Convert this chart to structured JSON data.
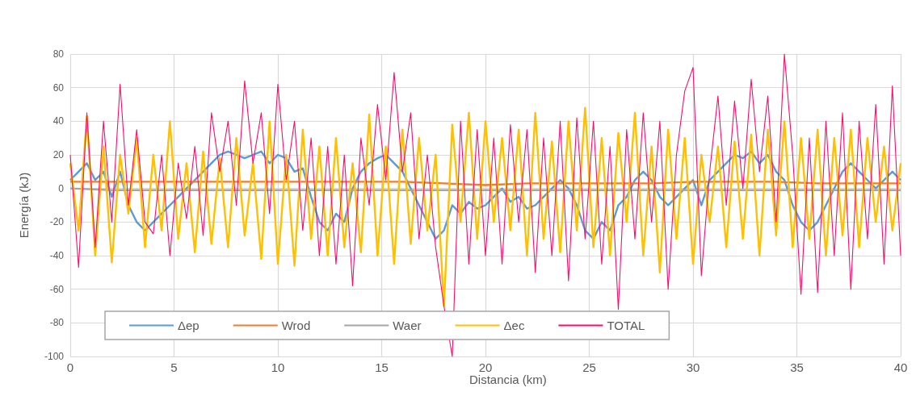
{
  "chart_data": {
    "type": "line",
    "xlabel": "Distancia (km)",
    "ylabel": "Energía (kJ)",
    "xlim": [
      0,
      40
    ],
    "xticks": [
      0,
      5,
      10,
      15,
      20,
      25,
      30,
      35,
      40
    ],
    "ylim": [
      -100,
      80
    ],
    "yticks": [
      -100,
      -80,
      -60,
      -40,
      -20,
      0,
      20,
      40,
      60,
      80
    ],
    "grid": true,
    "legend": "bottom left",
    "line_style": "solid",
    "x": [
      0,
      0.4,
      0.8,
      1.2,
      1.6,
      2,
      2.4,
      2.8,
      3.2,
      3.6,
      4,
      4.4,
      4.8,
      5.2,
      5.6,
      6,
      6.4,
      6.8,
      7.2,
      7.6,
      8,
      8.4,
      8.8,
      9.2,
      9.6,
      10,
      10.4,
      10.8,
      11.2,
      11.6,
      12,
      12.4,
      12.8,
      13.2,
      13.6,
      14,
      14.4,
      14.8,
      15.2,
      15.6,
      16,
      16.4,
      16.8,
      17.2,
      17.6,
      18,
      18.4,
      18.8,
      19.2,
      19.6,
      20,
      20.4,
      20.8,
      21.2,
      21.6,
      22,
      22.4,
      22.8,
      23.2,
      23.6,
      24,
      24.4,
      24.8,
      25.2,
      25.6,
      26,
      26.4,
      26.8,
      27.2,
      27.6,
      28,
      28.4,
      28.8,
      29.2,
      29.6,
      30,
      30.4,
      30.8,
      31.2,
      31.6,
      32,
      32.4,
      32.8,
      33.2,
      33.6,
      34,
      34.4,
      34.8,
      35.2,
      35.6,
      36,
      36.4,
      36.8,
      37.2,
      37.6,
      38,
      38.4,
      38.8,
      39.2,
      39.6,
      40
    ],
    "series": [
      {
        "name": "Δep",
        "color": "#5b9bd5",
        "values": [
          5,
          10,
          15,
          5,
          10,
          -5,
          10,
          -10,
          -20,
          -25,
          -20,
          -15,
          -10,
          -5,
          0,
          5,
          10,
          15,
          20,
          22,
          20,
          18,
          20,
          22,
          15,
          20,
          18,
          10,
          12,
          -5,
          -20,
          -25,
          -15,
          -20,
          0,
          10,
          15,
          18,
          20,
          15,
          10,
          0,
          -10,
          -20,
          -30,
          -25,
          -10,
          -15,
          -8,
          -12,
          -10,
          -5,
          0,
          -8,
          -5,
          -12,
          -10,
          -5,
          0,
          5,
          0,
          -10,
          -25,
          -30,
          -20,
          -25,
          -10,
          -5,
          5,
          10,
          5,
          -5,
          -10,
          -5,
          0,
          5,
          -10,
          5,
          10,
          15,
          20,
          18,
          22,
          15,
          20,
          10,
          5,
          -10,
          -20,
          -25,
          -20,
          -10,
          0,
          10,
          15,
          10,
          5,
          0,
          5,
          10,
          5
        ]
      },
      {
        "name": "Wrod",
        "color": "#ed7d31",
        "x": [
          0,
          2,
          4,
          6,
          8,
          10,
          12,
          14,
          16,
          18,
          20,
          22,
          24,
          26,
          28,
          30,
          32,
          34,
          36,
          38,
          40
        ],
        "values": [
          4,
          4,
          4,
          4,
          4,
          4,
          4,
          4,
          4,
          3,
          2,
          3,
          3,
          3,
          3,
          4,
          4,
          4,
          3,
          3,
          3
        ]
      },
      {
        "name": "Waer",
        "color": "#a5a5a5",
        "x": [
          0,
          2,
          4,
          6,
          8,
          10,
          12,
          14,
          16,
          18,
          20,
          22,
          24,
          26,
          28,
          30,
          32,
          34,
          36,
          38,
          40
        ],
        "values": [
          0,
          -1,
          -1,
          -1,
          -1,
          -1,
          -1,
          -1,
          -1,
          -1,
          -1,
          -1,
          -1,
          -1,
          -1,
          -1,
          -1,
          -1,
          -1,
          -1,
          -1
        ]
      },
      {
        "name": "Δec",
        "color": "#ffc000",
        "values": [
          15,
          -25,
          43,
          -40,
          25,
          -44,
          20,
          -15,
          30,
          -35,
          20,
          -25,
          40,
          -30,
          15,
          -38,
          22,
          -33,
          18,
          -35,
          30,
          -28,
          15,
          -42,
          40,
          -45,
          20,
          -46,
          35,
          -30,
          25,
          -40,
          30,
          -35,
          15,
          -38,
          44,
          -40,
          25,
          -45,
          35,
          -33,
          30,
          -25,
          20,
          -70,
          38,
          -20,
          45,
          -30,
          40,
          -20,
          30,
          -25,
          35,
          -40,
          45,
          -30,
          28,
          -38,
          40,
          -25,
          48,
          -35,
          30,
          -40,
          33,
          -20,
          45,
          -40,
          25,
          -50,
          35,
          -30,
          30,
          -45,
          20,
          -20,
          25,
          -35,
          28,
          -30,
          32,
          -40,
          35,
          -28,
          40,
          -35,
          30,
          -30,
          35,
          -40,
          30,
          -28,
          35,
          -35,
          30,
          -20,
          25,
          -25,
          15
        ]
      },
      {
        "name": "TOTAL",
        "color": "#ff0a6c",
        "values": [
          20,
          -47,
          45,
          -35,
          40,
          -20,
          62,
          -10,
          35,
          -20,
          -27,
          20,
          -40,
          15,
          -18,
          25,
          -28,
          45,
          10,
          40,
          -10,
          64,
          15,
          45,
          -15,
          62,
          5,
          40,
          -25,
          30,
          -40,
          25,
          -45,
          20,
          -58,
          30,
          -10,
          50,
          5,
          69,
          10,
          45,
          -30,
          20,
          -35,
          -70,
          -100,
          40,
          -45,
          35,
          -40,
          30,
          -45,
          38,
          -20,
          35,
          -50,
          30,
          -40,
          40,
          -55,
          42,
          -30,
          40,
          -45,
          25,
          -72,
          35,
          -30,
          45,
          -20,
          40,
          -60,
          20,
          58,
          72,
          -52,
          10,
          55,
          -10,
          52,
          0,
          65,
          10,
          55,
          -20,
          80,
          20,
          -63,
          30,
          -62,
          40,
          -40,
          45,
          -60,
          40,
          -30,
          50,
          -45,
          61,
          -40
        ]
      }
    ]
  }
}
